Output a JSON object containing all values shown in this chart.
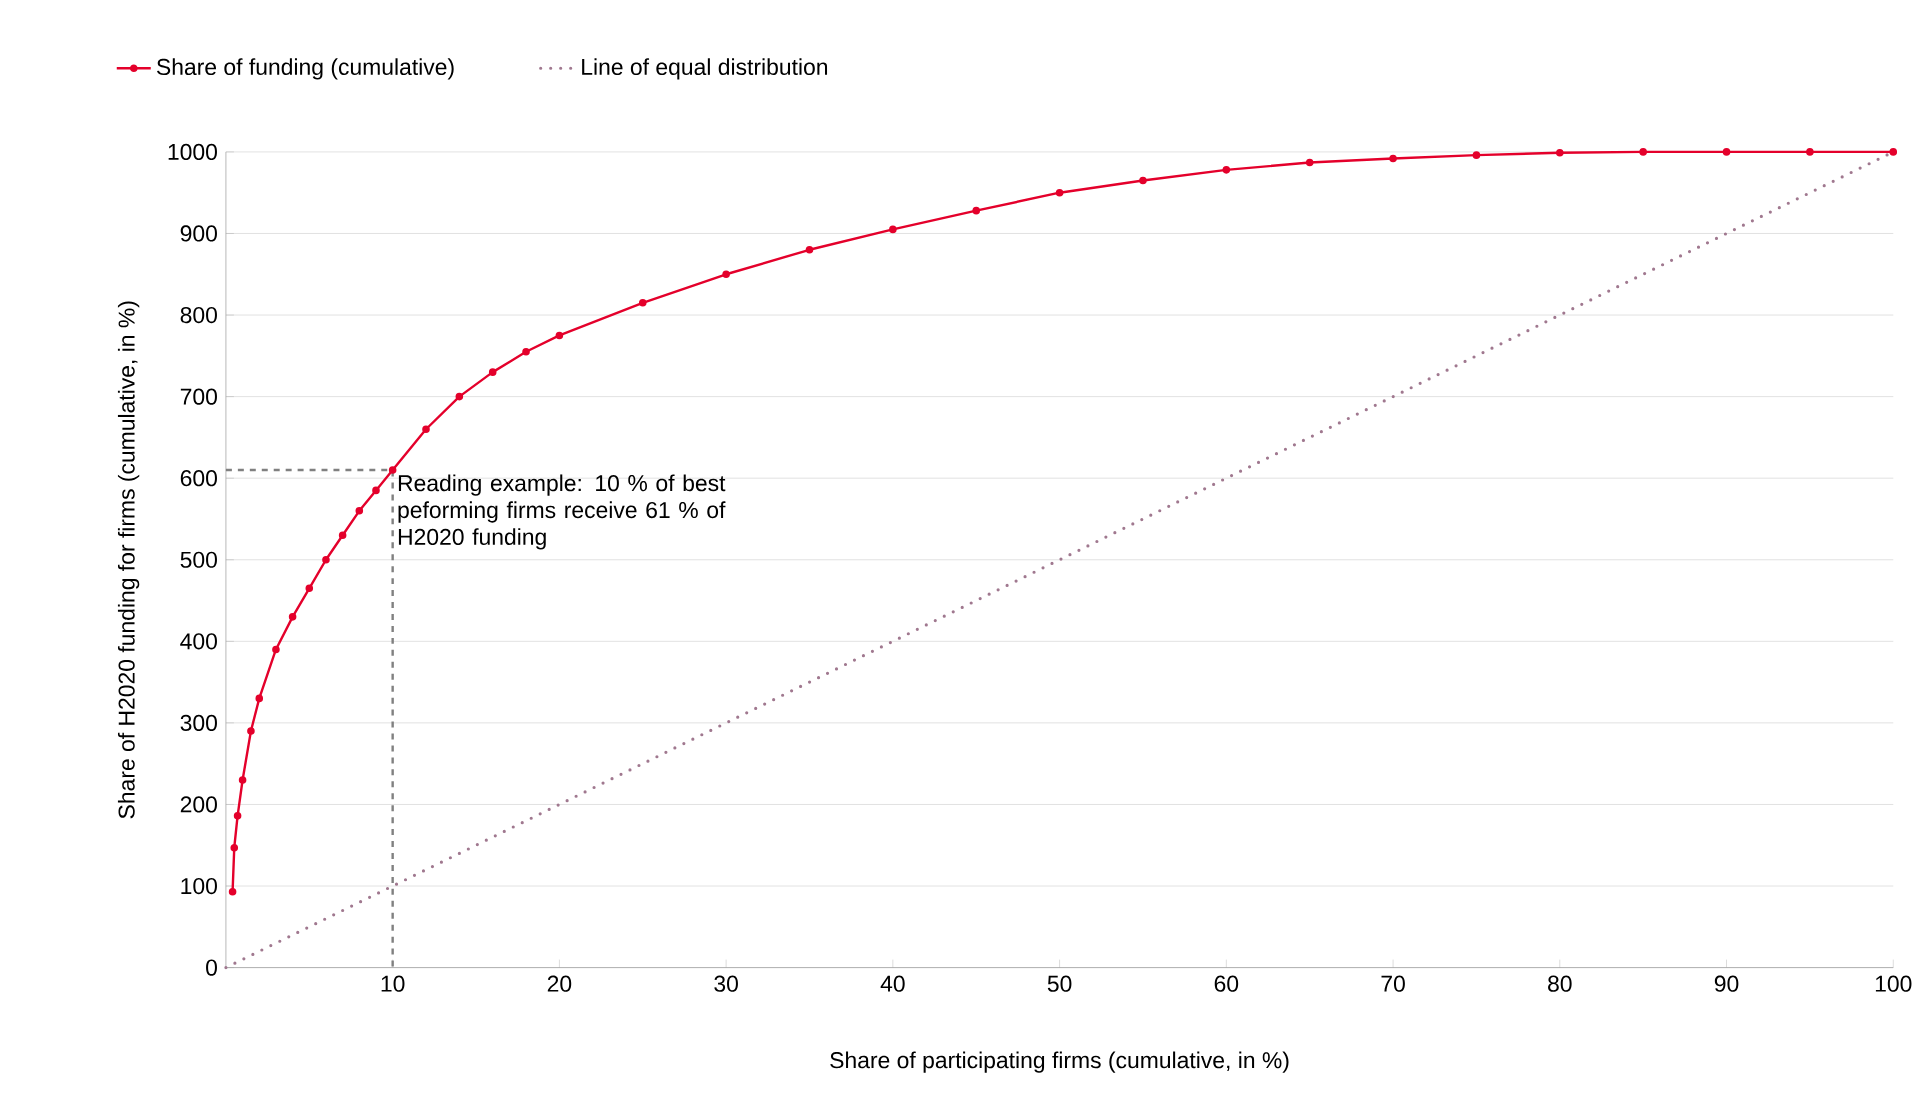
{
  "chart_data": {
    "type": "line",
    "xlabel": "Share of participating firms (cumulative, in %)",
    "ylabel": "Share of H2020 funding for firms (cumulative, in %)",
    "xlim": [
      0,
      100
    ],
    "ylim": [
      0,
      1000
    ],
    "xticks": [
      10,
      20,
      30,
      40,
      50,
      60,
      70,
      80,
      90,
      100
    ],
    "yticks": [
      0,
      100,
      200,
      300,
      400,
      500,
      600,
      700,
      800,
      900,
      1000
    ],
    "grid": "y",
    "legend": "top left",
    "series": [
      {
        "name": "Share of funding (cumulative)",
        "color": "#e4002b",
        "marker": "circle",
        "x": [
          0.4,
          0.5,
          0.7,
          1,
          1.5,
          2,
          3,
          4,
          5,
          6,
          7,
          8,
          9,
          10,
          12,
          14,
          16,
          18,
          20,
          25,
          30,
          35,
          40,
          45,
          50,
          55,
          60,
          65,
          70,
          75,
          80,
          85,
          90,
          95,
          100
        ],
        "values": [
          93,
          147,
          186,
          230,
          290,
          330,
          390,
          430,
          465,
          500,
          530,
          560,
          585,
          610,
          660,
          700,
          730,
          755,
          775,
          815,
          850,
          880,
          905,
          928,
          950,
          965,
          978,
          987,
          992,
          996,
          999,
          1000,
          1000,
          1000,
          1000
        ]
      },
      {
        "name": "Line of equal distribution",
        "color": "#a0788f",
        "line_style": "dotted",
        "x": [
          0,
          100
        ],
        "values": [
          0,
          1000
        ]
      },
      {
        "color": "#808080",
        "line_style": "dashed",
        "x": [
          0,
          10,
          10
        ],
        "values": [
          610,
          610,
          0
        ]
      }
    ],
    "annotations": [
      {
        "text": "Reading example: 10 % of best peforming firms receive 61 % of H2020 funding",
        "x": 10,
        "y": 610
      }
    ]
  }
}
